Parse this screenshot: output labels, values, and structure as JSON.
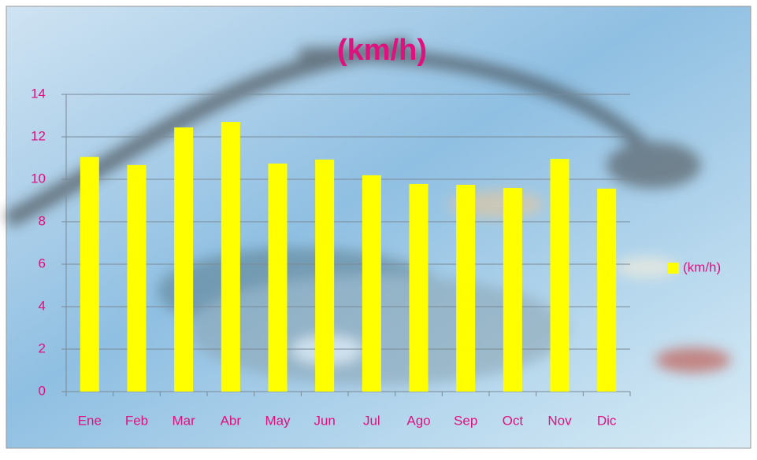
{
  "chart_data": {
    "type": "bar",
    "title": "(km/h)",
    "categories": [
      "Ene",
      "Feb",
      "Mar",
      "Abr",
      "May",
      "Jun",
      "Jul",
      "Ago",
      "Sep",
      "Oct",
      "Nov",
      "Dic"
    ],
    "series": [
      {
        "name": "(km/h)",
        "color": "#ffff00",
        "values": [
          11.05,
          10.67,
          12.44,
          12.7,
          10.74,
          10.93,
          10.19,
          9.78,
          9.74,
          9.59,
          10.96,
          9.56
        ]
      }
    ],
    "ylim": [
      0,
      14
    ],
    "yticks": [
      0,
      2,
      4,
      6,
      8,
      10,
      12,
      14
    ],
    "grid": true,
    "legend": "right"
  }
}
